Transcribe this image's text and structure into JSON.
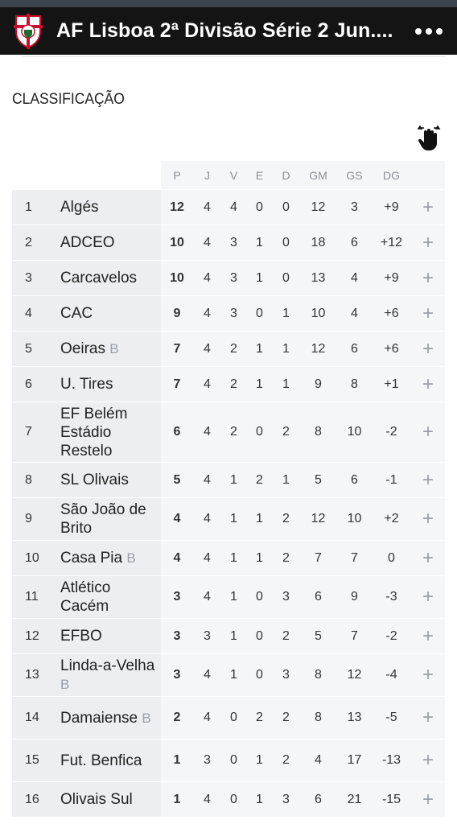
{
  "app": {
    "title": "AF Lisboa 2ª Divisão Série 2 Jun...."
  },
  "section_title": "CLASSIFICAÇÃO",
  "icons": {
    "logo": "club-crest-icon",
    "more": "more-dots-icon",
    "swipe": "hand-swipe-icon"
  },
  "colors": {
    "appbar": "#141414",
    "crest_red": "#c8102e"
  },
  "table": {
    "headers": [
      "P",
      "J",
      "V",
      "E",
      "D",
      "GM",
      "GS",
      "DG"
    ],
    "rows": [
      {
        "pos": "1",
        "team": "Algés",
        "suffix": "",
        "p": "12",
        "j": "4",
        "v": "4",
        "e": "0",
        "d": "0",
        "gm": "12",
        "gs": "3",
        "dg": "+9",
        "action": "+"
      },
      {
        "pos": "2",
        "team": "ADCEO",
        "suffix": "",
        "p": "10",
        "j": "4",
        "v": "3",
        "e": "1",
        "d": "0",
        "gm": "18",
        "gs": "6",
        "dg": "+12",
        "action": "+"
      },
      {
        "pos": "3",
        "team": "Carcavelos",
        "suffix": "",
        "p": "10",
        "j": "4",
        "v": "3",
        "e": "1",
        "d": "0",
        "gm": "13",
        "gs": "4",
        "dg": "+9",
        "action": "+"
      },
      {
        "pos": "4",
        "team": "CAC",
        "suffix": "",
        "p": "9",
        "j": "4",
        "v": "3",
        "e": "0",
        "d": "1",
        "gm": "10",
        "gs": "4",
        "dg": "+6",
        "action": "+"
      },
      {
        "pos": "5",
        "team": "Oeiras",
        "suffix": "B",
        "p": "7",
        "j": "4",
        "v": "2",
        "e": "1",
        "d": "1",
        "gm": "12",
        "gs": "6",
        "dg": "+6",
        "action": "+"
      },
      {
        "pos": "6",
        "team": "U. Tires",
        "suffix": "",
        "p": "7",
        "j": "4",
        "v": "2",
        "e": "1",
        "d": "1",
        "gm": "9",
        "gs": "8",
        "dg": "+1",
        "action": "+"
      },
      {
        "pos": "7",
        "team": "EF Belém Estádio Restelo",
        "suffix": "",
        "p": "6",
        "j": "4",
        "v": "2",
        "e": "0",
        "d": "2",
        "gm": "8",
        "gs": "10",
        "dg": "-2",
        "action": "+"
      },
      {
        "pos": "8",
        "team": "SL Olivais",
        "suffix": "",
        "p": "5",
        "j": "4",
        "v": "1",
        "e": "2",
        "d": "1",
        "gm": "5",
        "gs": "6",
        "dg": "-1",
        "action": "+"
      },
      {
        "pos": "9",
        "team": "São João de Brito",
        "suffix": "",
        "p": "4",
        "j": "4",
        "v": "1",
        "e": "1",
        "d": "2",
        "gm": "12",
        "gs": "10",
        "dg": "+2",
        "action": "+"
      },
      {
        "pos": "10",
        "team": "Casa Pia",
        "suffix": "B",
        "p": "4",
        "j": "4",
        "v": "1",
        "e": "1",
        "d": "2",
        "gm": "7",
        "gs": "7",
        "dg": "0",
        "action": "+"
      },
      {
        "pos": "11",
        "team": "Atlético Cacém",
        "suffix": "",
        "p": "3",
        "j": "4",
        "v": "1",
        "e": "0",
        "d": "3",
        "gm": "6",
        "gs": "9",
        "dg": "-3",
        "action": "+"
      },
      {
        "pos": "12",
        "team": "EFBO",
        "suffix": "",
        "p": "3",
        "j": "3",
        "v": "1",
        "e": "0",
        "d": "2",
        "gm": "5",
        "gs": "7",
        "dg": "-2",
        "action": "+"
      },
      {
        "pos": "13",
        "team": "Linda-a-Velha",
        "suffix": "B",
        "p": "3",
        "j": "4",
        "v": "1",
        "e": "0",
        "d": "3",
        "gm": "8",
        "gs": "12",
        "dg": "-4",
        "action": "+"
      },
      {
        "pos": "14",
        "team": "Damaiense",
        "suffix": "B",
        "p": "2",
        "j": "4",
        "v": "0",
        "e": "2",
        "d": "2",
        "gm": "8",
        "gs": "13",
        "dg": "-5",
        "action": "+"
      },
      {
        "pos": "15",
        "team": "Fut. Benfica",
        "suffix": "",
        "p": "1",
        "j": "3",
        "v": "0",
        "e": "1",
        "d": "2",
        "gm": "4",
        "gs": "17",
        "dg": "-13",
        "action": "+"
      },
      {
        "pos": "16",
        "team": "Olivais Sul",
        "suffix": "",
        "p": "1",
        "j": "4",
        "v": "0",
        "e": "1",
        "d": "3",
        "gm": "6",
        "gs": "21",
        "dg": "-15",
        "action": "+"
      }
    ]
  }
}
